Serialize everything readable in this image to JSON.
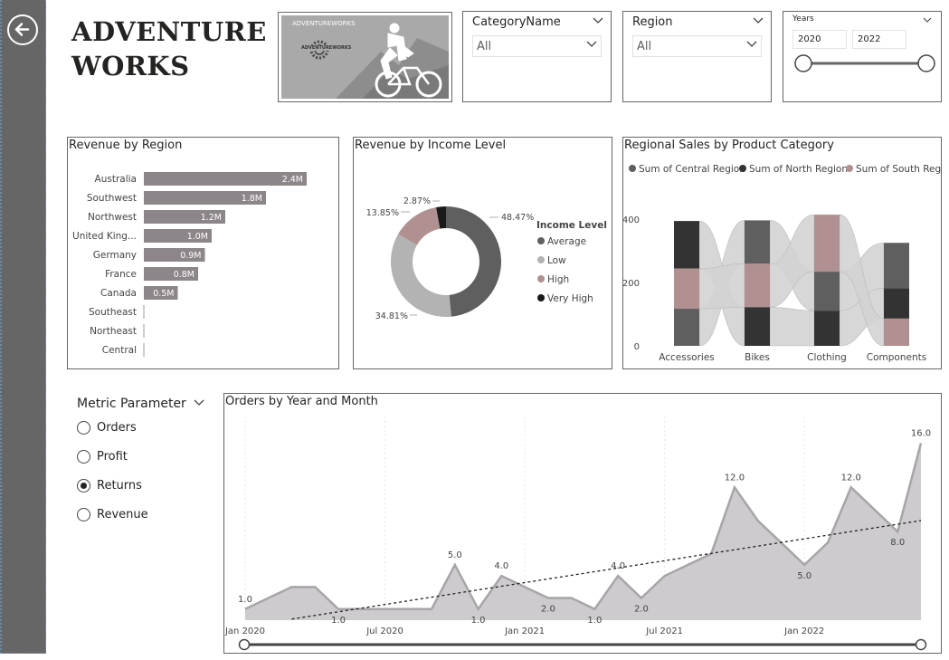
{
  "title_line1": "ADVENTURE",
  "title_line2": "WORKS",
  "logo": {
    "brand_top": "ADVENTUREWORKS",
    "brand_badge": "ADVENTUREWORKS"
  },
  "slicers": {
    "category": {
      "label": "CategoryName",
      "value": "All"
    },
    "region": {
      "label": "Region",
      "value": "All"
    },
    "years": {
      "label": "Years",
      "start": "2020",
      "end": "2022"
    }
  },
  "revenue_by_region": {
    "title": "Revenue by Region",
    "chart_data": {
      "type": "bar",
      "categories": [
        "Australia",
        "Southwest",
        "Northwest",
        "United King...",
        "Germany",
        "France",
        "Canada",
        "Southeast",
        "Northeast",
        "Central"
      ],
      "values": [
        2.4,
        1.8,
        1.2,
        1.0,
        0.9,
        0.8,
        0.5,
        0,
        0,
        0
      ],
      "labels": [
        "2.4M",
        "1.8M",
        "1.2M",
        "1.0M",
        "0.9M",
        "0.8M",
        "0.5M",
        "",
        "",
        ""
      ],
      "color": "#8c8589"
    }
  },
  "revenue_by_income": {
    "title": "Revenue by Income Level",
    "chart_data": {
      "type": "pie",
      "legend_title": "Income Level",
      "slices": [
        {
          "name": "Average",
          "value": 48.47,
          "label": "48.47%",
          "color": "#5f5f5f"
        },
        {
          "name": "Low",
          "value": 34.81,
          "label": "34.81%",
          "color": "#b3b3b3"
        },
        {
          "name": "High",
          "value": 13.85,
          "label": "13.85%",
          "color": "#b09090"
        },
        {
          "name": "Very High",
          "value": 2.87,
          "label": "2.87%",
          "color": "#1a1a1a"
        }
      ],
      "legend_position": "right"
    }
  },
  "regional_sales": {
    "title": "Regional Sales by Product Category",
    "chart_data": {
      "type": "ribbon",
      "legend": [
        {
          "name": "Sum of Central Region",
          "color": "#5f5f5f"
        },
        {
          "name": "Sum of North Region",
          "color": "#333333"
        },
        {
          "name": "Sum of South Reg...",
          "color": "#b09090"
        }
      ],
      "categories": [
        "Accessories",
        "Bikes",
        "Clothing",
        "Components"
      ],
      "y_ticks": [
        "400",
        "200",
        "0"
      ],
      "ylim": [
        0,
        400
      ],
      "stacks": [
        [
          {
            "series": 1,
            "value": 150
          },
          {
            "series": 2,
            "value": 127
          },
          {
            "series": 0,
            "value": 117
          }
        ],
        [
          {
            "series": 0,
            "value": 137
          },
          {
            "series": 2,
            "value": 137
          },
          {
            "series": 1,
            "value": 122
          }
        ],
        [
          {
            "series": 2,
            "value": 180
          },
          {
            "series": 0,
            "value": 123
          },
          {
            "series": 1,
            "value": 111
          }
        ],
        [
          {
            "series": 0,
            "value": 143
          },
          {
            "series": 1,
            "value": 96
          },
          {
            "series": 2,
            "value": 86
          }
        ]
      ]
    }
  },
  "metric_parameter": {
    "title": "Metric Parameter",
    "options": [
      {
        "label": "Orders",
        "selected": false
      },
      {
        "label": "Profit",
        "selected": false
      },
      {
        "label": "Returns",
        "selected": true
      },
      {
        "label": "Revenue",
        "selected": false
      }
    ]
  },
  "orders_by_month": {
    "title": "Orders by Year and Month",
    "chart_data": {
      "type": "area",
      "x_ticks": [
        "Jan 2020",
        "Jul 2020",
        "Jan 2021",
        "Jul 2021",
        "Jan 2022"
      ],
      "x_tick_index": [
        0,
        6,
        12,
        18,
        24
      ],
      "values": [
        1,
        2,
        3,
        3,
        1,
        1,
        1,
        1,
        1,
        5,
        1,
        4,
        3,
        2,
        2,
        1,
        4,
        2,
        4,
        5,
        6,
        12,
        9,
        7,
        5,
        7,
        12,
        10,
        8,
        16
      ],
      "point_labels": {
        "0": "1.0",
        "4": "1.0",
        "9": "5.0",
        "10": "1.0",
        "11": "4.0",
        "13": "2.0",
        "15": "1.0",
        "16": "4.0",
        "17": "2.0",
        "21": "12.0",
        "24": "5.0",
        "26": "12.0",
        "28": "8.0",
        "29": "16.0"
      },
      "trend": [
        0.1,
        15.8
      ],
      "ylim": [
        0,
        18
      ],
      "fill_color": "#cdcbce",
      "line_color": "#a8a5a8"
    }
  }
}
